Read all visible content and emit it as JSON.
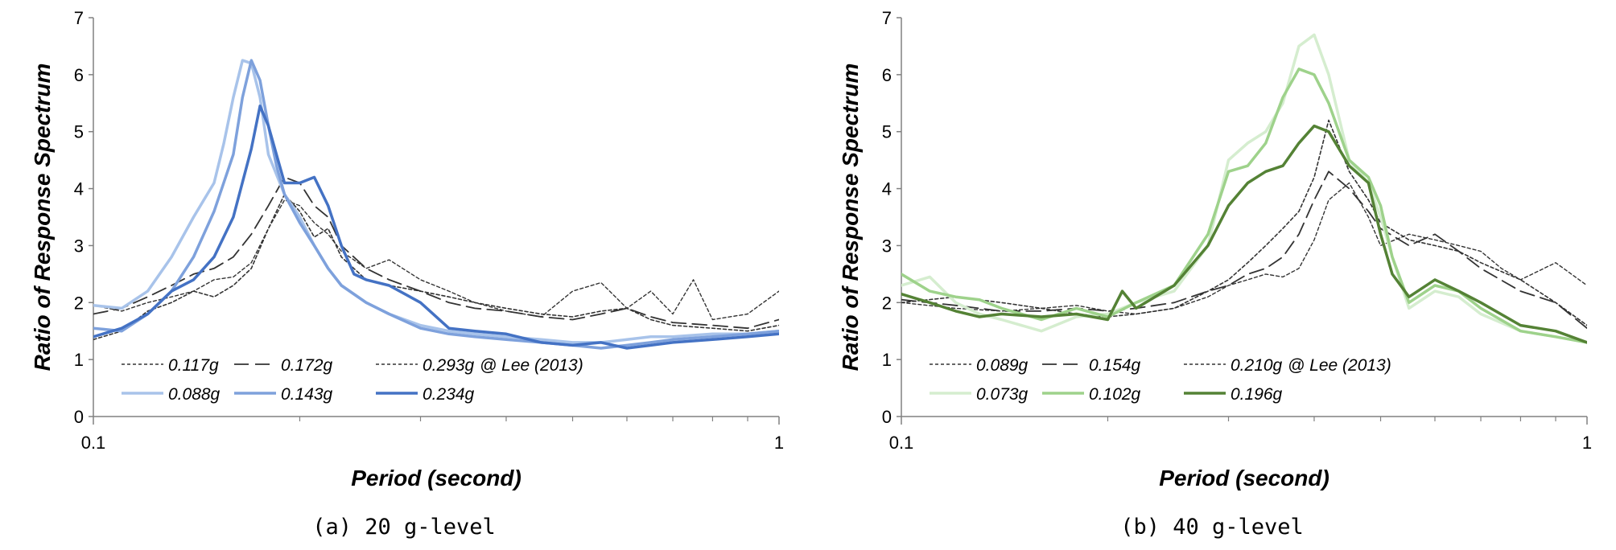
{
  "chart_data": [
    {
      "type": "line",
      "caption": "(a) 20 g-level",
      "xlabel": "Period (second)",
      "ylabel": "Ratio of Response Spectrum",
      "x_scale": "log",
      "xlim": [
        0.1,
        1
      ],
      "ylim": [
        0,
        7
      ],
      "x_ticks": [
        "0.1",
        "1"
      ],
      "y_ticks": [
        "0",
        "1",
        "2",
        "3",
        "4",
        "5",
        "6",
        "7"
      ],
      "grid": false,
      "legend_placement": "bottom-left",
      "legend_note": "@ Lee (2013)",
      "series": [
        {
          "name": "0.117g",
          "color": "#333333",
          "dash": "short",
          "width": 1.6,
          "x": [
            0.1,
            0.11,
            0.12,
            0.13,
            0.14,
            0.15,
            0.16,
            0.17,
            0.18,
            0.19,
            0.2,
            0.21,
            0.22,
            0.23,
            0.25,
            0.27,
            0.3,
            0.33,
            0.36,
            0.4,
            0.45,
            0.5,
            0.55,
            0.6,
            0.65,
            0.7,
            0.8,
            0.9,
            1.0
          ],
          "y": [
            1.35,
            1.5,
            1.85,
            2.0,
            2.2,
            2.1,
            2.3,
            2.6,
            3.3,
            3.9,
            3.6,
            3.15,
            3.3,
            2.8,
            2.4,
            2.3,
            2.2,
            2.1,
            2.0,
            1.9,
            1.8,
            1.75,
            1.85,
            1.9,
            1.7,
            1.6,
            1.55,
            1.5,
            1.6
          ]
        },
        {
          "name": "0.172g",
          "color": "#333333",
          "dash": "long",
          "width": 1.8,
          "x": [
            0.1,
            0.11,
            0.12,
            0.13,
            0.14,
            0.15,
            0.16,
            0.17,
            0.18,
            0.19,
            0.2,
            0.21,
            0.22,
            0.23,
            0.25,
            0.27,
            0.3,
            0.33,
            0.36,
            0.4,
            0.45,
            0.5,
            0.55,
            0.6,
            0.65,
            0.7,
            0.8,
            0.9,
            1.0
          ],
          "y": [
            1.8,
            1.9,
            2.1,
            2.3,
            2.5,
            2.6,
            2.8,
            3.2,
            3.7,
            4.2,
            4.1,
            3.7,
            3.5,
            3.0,
            2.6,
            2.4,
            2.2,
            2.0,
            1.9,
            1.85,
            1.75,
            1.7,
            1.8,
            1.9,
            1.75,
            1.65,
            1.6,
            1.55,
            1.7
          ]
        },
        {
          "name": "0.293g",
          "color": "#333333",
          "dash": "short",
          "width": 1.4,
          "x": [
            0.1,
            0.11,
            0.12,
            0.13,
            0.14,
            0.15,
            0.16,
            0.17,
            0.18,
            0.19,
            0.2,
            0.21,
            0.22,
            0.23,
            0.25,
            0.27,
            0.3,
            0.33,
            0.36,
            0.4,
            0.45,
            0.5,
            0.55,
            0.6,
            0.65,
            0.7,
            0.75,
            0.8,
            0.9,
            1.0
          ],
          "y": [
            1.95,
            1.85,
            2.0,
            2.1,
            2.2,
            2.4,
            2.45,
            2.7,
            3.3,
            3.8,
            3.7,
            3.4,
            3.2,
            2.9,
            2.6,
            2.75,
            2.4,
            2.2,
            2.0,
            1.85,
            1.75,
            2.2,
            2.35,
            1.9,
            2.2,
            1.8,
            2.4,
            1.7,
            1.8,
            2.2
          ]
        },
        {
          "name": "0.088g",
          "color": "#A8C3EA",
          "dash": "solid",
          "width": 3.5,
          "x": [
            0.1,
            0.11,
            0.12,
            0.13,
            0.14,
            0.15,
            0.155,
            0.16,
            0.165,
            0.17,
            0.175,
            0.18,
            0.19,
            0.2,
            0.21,
            0.22,
            0.23,
            0.25,
            0.27,
            0.3,
            0.33,
            0.36,
            0.4,
            0.45,
            0.5,
            0.55,
            0.6,
            0.65,
            0.7,
            0.8,
            0.9,
            1.0
          ],
          "y": [
            1.95,
            1.9,
            2.2,
            2.8,
            3.5,
            4.1,
            4.8,
            5.6,
            6.25,
            6.2,
            5.6,
            4.6,
            3.9,
            3.5,
            3.0,
            2.6,
            2.3,
            2.0,
            1.8,
            1.6,
            1.5,
            1.45,
            1.4,
            1.35,
            1.3,
            1.3,
            1.35,
            1.4,
            1.4,
            1.45,
            1.45,
            1.5
          ]
        },
        {
          "name": "0.143g",
          "color": "#7EA1DC",
          "dash": "solid",
          "width": 3.5,
          "x": [
            0.1,
            0.11,
            0.12,
            0.13,
            0.14,
            0.15,
            0.16,
            0.165,
            0.17,
            0.175,
            0.18,
            0.185,
            0.19,
            0.2,
            0.21,
            0.22,
            0.23,
            0.25,
            0.27,
            0.3,
            0.33,
            0.36,
            0.4,
            0.45,
            0.5,
            0.55,
            0.6,
            0.65,
            0.7,
            0.8,
            0.9,
            1.0
          ],
          "y": [
            1.55,
            1.5,
            1.8,
            2.2,
            2.8,
            3.6,
            4.6,
            5.6,
            6.25,
            5.9,
            5.1,
            4.4,
            3.9,
            3.4,
            3.0,
            2.6,
            2.3,
            2.0,
            1.8,
            1.55,
            1.45,
            1.4,
            1.35,
            1.3,
            1.25,
            1.2,
            1.25,
            1.3,
            1.35,
            1.4,
            1.45,
            1.5
          ]
        },
        {
          "name": "0.234g",
          "color": "#4472C4",
          "dash": "solid",
          "width": 3.5,
          "x": [
            0.1,
            0.11,
            0.12,
            0.13,
            0.14,
            0.15,
            0.16,
            0.17,
            0.175,
            0.18,
            0.19,
            0.2,
            0.21,
            0.22,
            0.23,
            0.24,
            0.25,
            0.27,
            0.3,
            0.33,
            0.36,
            0.4,
            0.45,
            0.5,
            0.55,
            0.6,
            0.65,
            0.7,
            0.8,
            0.9,
            1.0
          ],
          "y": [
            1.4,
            1.55,
            1.8,
            2.2,
            2.4,
            2.8,
            3.5,
            4.7,
            5.45,
            5.1,
            4.1,
            4.1,
            4.2,
            3.7,
            3.0,
            2.5,
            2.4,
            2.3,
            2.0,
            1.55,
            1.5,
            1.45,
            1.3,
            1.25,
            1.3,
            1.2,
            1.25,
            1.3,
            1.35,
            1.4,
            1.45
          ]
        }
      ]
    },
    {
      "type": "line",
      "caption": "(b) 40 g-level",
      "xlabel": "Period (second)",
      "ylabel": "Ratio of Response Spectrum",
      "x_scale": "log",
      "xlim": [
        0.1,
        1
      ],
      "ylim": [
        0,
        7
      ],
      "x_ticks": [
        "0.1",
        "1"
      ],
      "y_ticks": [
        "0",
        "1",
        "2",
        "3",
        "4",
        "5",
        "6",
        "7"
      ],
      "grid": false,
      "legend_placement": "bottom-left",
      "legend_note": "@ Lee (2013)",
      "series": [
        {
          "name": "0.089g",
          "color": "#333333",
          "dash": "short",
          "width": 1.6,
          "x": [
            0.1,
            0.12,
            0.14,
            0.16,
            0.18,
            0.2,
            0.22,
            0.25,
            0.28,
            0.3,
            0.32,
            0.34,
            0.36,
            0.38,
            0.4,
            0.42,
            0.45,
            0.48,
            0.5,
            0.55,
            0.6,
            0.65,
            0.7,
            0.8,
            0.9,
            1.0
          ],
          "y": [
            2.0,
            2.1,
            2.0,
            1.9,
            1.8,
            1.75,
            1.8,
            1.9,
            2.2,
            2.4,
            2.7,
            3.0,
            3.3,
            3.6,
            4.2,
            5.2,
            4.3,
            3.8,
            3.4,
            3.1,
            3.0,
            2.9,
            2.7,
            2.4,
            2.0,
            1.6
          ]
        },
        {
          "name": "0.154g",
          "color": "#333333",
          "dash": "long",
          "width": 1.8,
          "x": [
            0.1,
            0.12,
            0.14,
            0.16,
            0.18,
            0.2,
            0.22,
            0.25,
            0.28,
            0.3,
            0.32,
            0.34,
            0.36,
            0.38,
            0.4,
            0.42,
            0.45,
            0.48,
            0.5,
            0.55,
            0.6,
            0.65,
            0.7,
            0.8,
            0.9,
            1.0
          ],
          "y": [
            2.05,
            1.95,
            1.85,
            1.85,
            1.9,
            1.85,
            1.9,
            2.0,
            2.2,
            2.3,
            2.5,
            2.6,
            2.8,
            3.2,
            3.8,
            4.3,
            4.0,
            3.6,
            3.3,
            3.0,
            3.2,
            2.9,
            2.6,
            2.2,
            2.0,
            1.55
          ]
        },
        {
          "name": "0.210g",
          "color": "#333333",
          "dash": "short",
          "width": 1.4,
          "x": [
            0.1,
            0.12,
            0.14,
            0.16,
            0.18,
            0.2,
            0.22,
            0.25,
            0.28,
            0.3,
            0.32,
            0.34,
            0.36,
            0.38,
            0.4,
            0.42,
            0.45,
            0.48,
            0.5,
            0.55,
            0.6,
            0.65,
            0.7,
            0.75,
            0.8,
            0.9,
            1.0
          ],
          "y": [
            2.0,
            1.9,
            1.85,
            1.9,
            1.95,
            1.85,
            1.8,
            1.9,
            2.1,
            2.3,
            2.4,
            2.5,
            2.45,
            2.6,
            3.1,
            3.8,
            4.1,
            3.5,
            3.0,
            3.2,
            3.1,
            3.0,
            2.9,
            2.6,
            2.4,
            2.7,
            2.3
          ]
        },
        {
          "name": "0.073g",
          "color": "#D5EDCF",
          "dash": "solid",
          "width": 3.5,
          "x": [
            0.1,
            0.11,
            0.12,
            0.13,
            0.14,
            0.16,
            0.18,
            0.2,
            0.22,
            0.25,
            0.28,
            0.3,
            0.32,
            0.34,
            0.36,
            0.38,
            0.4,
            0.42,
            0.45,
            0.48,
            0.5,
            0.52,
            0.55,
            0.6,
            0.65,
            0.7,
            0.8,
            0.9,
            1.0
          ],
          "y": [
            2.3,
            2.45,
            2.0,
            1.8,
            1.7,
            1.5,
            1.75,
            1.8,
            2.0,
            2.2,
            3.0,
            4.5,
            4.8,
            5.0,
            5.5,
            6.5,
            6.7,
            6.0,
            4.5,
            4.1,
            3.5,
            2.8,
            1.9,
            2.2,
            2.1,
            1.8,
            1.5,
            1.4,
            1.3
          ]
        },
        {
          "name": "0.102g",
          "color": "#9ED28B",
          "dash": "solid",
          "width": 3.5,
          "x": [
            0.1,
            0.11,
            0.12,
            0.13,
            0.14,
            0.16,
            0.18,
            0.2,
            0.22,
            0.25,
            0.28,
            0.3,
            0.32,
            0.34,
            0.36,
            0.38,
            0.4,
            0.42,
            0.45,
            0.48,
            0.5,
            0.52,
            0.55,
            0.6,
            0.65,
            0.7,
            0.8,
            0.9,
            1.0
          ],
          "y": [
            2.5,
            2.2,
            2.1,
            2.05,
            1.9,
            1.7,
            1.9,
            1.75,
            2.0,
            2.3,
            3.2,
            4.3,
            4.4,
            4.8,
            5.6,
            6.1,
            6.0,
            5.5,
            4.5,
            4.2,
            3.7,
            2.8,
            2.0,
            2.3,
            2.2,
            1.9,
            1.5,
            1.4,
            1.3
          ]
        },
        {
          "name": "0.196g",
          "color": "#548235",
          "dash": "solid",
          "width": 3.5,
          "x": [
            0.1,
            0.11,
            0.12,
            0.13,
            0.14,
            0.16,
            0.18,
            0.2,
            0.21,
            0.22,
            0.25,
            0.28,
            0.3,
            0.32,
            0.34,
            0.36,
            0.38,
            0.4,
            0.42,
            0.45,
            0.48,
            0.5,
            0.52,
            0.55,
            0.6,
            0.65,
            0.7,
            0.8,
            0.9,
            1.0
          ],
          "y": [
            2.15,
            2.0,
            1.85,
            1.75,
            1.8,
            1.75,
            1.8,
            1.7,
            2.2,
            1.9,
            2.3,
            3.0,
            3.7,
            4.1,
            4.3,
            4.4,
            4.8,
            5.1,
            5.0,
            4.4,
            4.1,
            3.2,
            2.5,
            2.1,
            2.4,
            2.2,
            2.0,
            1.6,
            1.5,
            1.3
          ]
        }
      ]
    }
  ]
}
